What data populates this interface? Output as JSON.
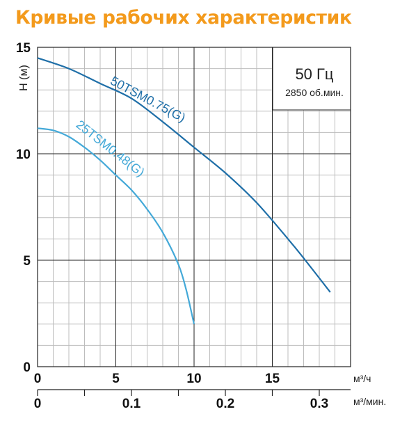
{
  "title": "Кривые рабочих характеристик",
  "chart_data": {
    "type": "line",
    "ylabel": "H (м)",
    "xlabel": "м³/ч",
    "x2label": "м³/мин.",
    "xlim": [
      0,
      20
    ],
    "ylim": [
      0,
      15
    ],
    "yticks": [
      "0",
      "5",
      "10",
      "15"
    ],
    "xticks": [
      "0",
      "5",
      "10",
      "15"
    ],
    "x2ticks": [
      "0",
      "0.1",
      "0.2",
      "0.3"
    ],
    "grid": true,
    "info_box": {
      "frequency": "50 Гц",
      "speed": "2850 об.мин."
    },
    "series": [
      {
        "name": "50TSM0.75(G)",
        "color": "#1f6fa8",
        "x": [
          0,
          2,
          4,
          6,
          8,
          10,
          12,
          14,
          16,
          17,
          18.7
        ],
        "y": [
          14.5,
          14.0,
          13.3,
          12.6,
          11.5,
          10.3,
          9.1,
          7.7,
          6.0,
          5.1,
          3.5
        ]
      },
      {
        "name": "25TSM0.48(G)",
        "color": "#44a9d8",
        "x": [
          0,
          1,
          2,
          3,
          4,
          5,
          6,
          7,
          8,
          9,
          9.5,
          10
        ],
        "y": [
          11.2,
          11.1,
          10.8,
          10.3,
          9.7,
          9.0,
          8.3,
          7.4,
          6.3,
          4.8,
          3.6,
          2.0
        ]
      }
    ]
  }
}
